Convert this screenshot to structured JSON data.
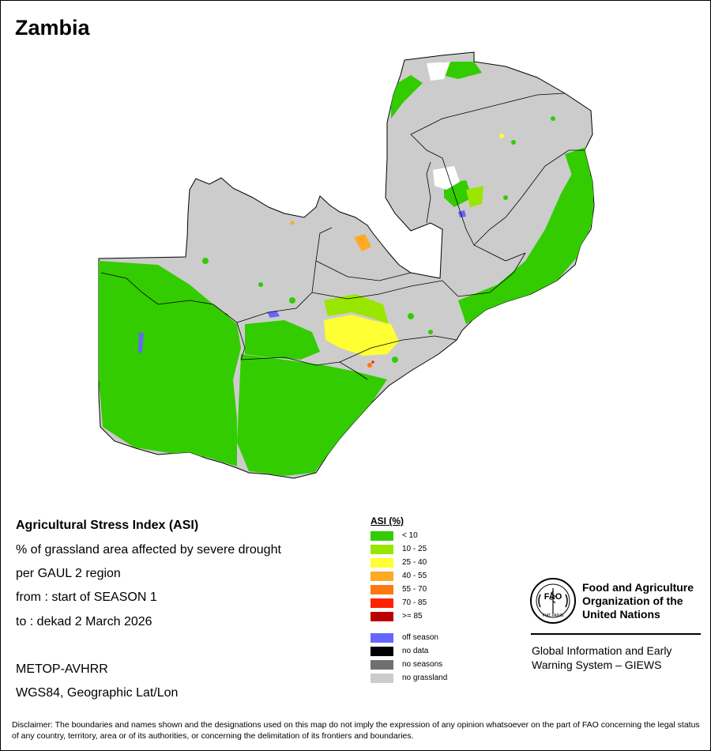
{
  "title": "Zambia",
  "info": {
    "line1": "Agricultural Stress Index (ASI)",
    "line2": "% of grassland area affected by severe drought",
    "line3": "per GAUL 2 region",
    "from": "from     : start of SEASON 1",
    "to": "to       : dekad 2 March 2026",
    "sensor": "METOP-AVHRR",
    "projection": "WGS84, Geographic Lat/Lon"
  },
  "legend": {
    "title": "ASI (%)",
    "items": [
      {
        "label": "< 10",
        "color": "#33cc00"
      },
      {
        "label": "10 - 25",
        "color": "#99e600"
      },
      {
        "label": "25 - 40",
        "color": "#ffff33"
      },
      {
        "label": "40 - 55",
        "color": "#ffaa22"
      },
      {
        "label": "55 - 70",
        "color": "#ff7711"
      },
      {
        "label": "70 - 85",
        "color": "#ff2200"
      },
      {
        "label": ">= 85",
        "color": "#bb0000"
      }
    ],
    "special": [
      {
        "label": "off season",
        "color": "#6666ff"
      },
      {
        "label": "no data",
        "color": "#000000"
      },
      {
        "label": "no seasons",
        "color": "#707070"
      },
      {
        "label": "no grassland",
        "color": "#cccccc"
      }
    ]
  },
  "fao": {
    "emblem_text": "FAO",
    "motto": "FIAT PANIS",
    "name_line1": "Food and Agriculture",
    "name_line2": "Organization of the",
    "name_line3": "United Nations",
    "giews_line1": "Global Information and Early",
    "giews_line2": "Warning System – GIEWS"
  },
  "disclaimer": "Disclaimer: The boundaries and names shown and the designations used on this map do not imply the expression of any opinion whatsoever on the part of FAO concerning the legal status of any country, territory, area or of its authorities, or concerning the delimitation of its frontiers and boundaries."
}
